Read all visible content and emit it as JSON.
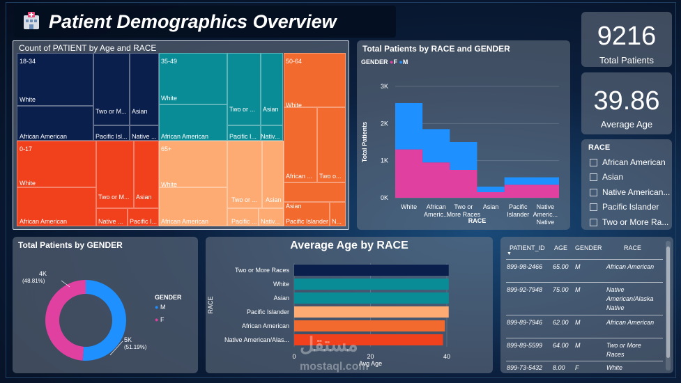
{
  "header": {
    "title": "Patient Demographics Overview"
  },
  "kpis": [
    {
      "value": "9216",
      "label": "Total Patients"
    },
    {
      "value": "39.86",
      "label": "Average Age"
    }
  ],
  "treemap": {
    "title": "Count of PATIENT by Age and RACE",
    "groups": [
      {
        "label": "18-34",
        "color": "#0b1f4d",
        "cells": [
          "White",
          "African American",
          "Two or M...",
          "Pacific Isl...",
          "Asian",
          "Native ..."
        ]
      },
      {
        "label": "35-49",
        "color": "#0a8c96",
        "cells": [
          "White",
          "African American",
          "Two or ...",
          "Pacific I...",
          "Asian",
          "Nativ..."
        ]
      },
      {
        "label": "50-64",
        "color": "#f26a2e",
        "cells": [
          "White",
          "African ...",
          "Two o...",
          "Asian",
          "Pacific Islander",
          "N..."
        ]
      },
      {
        "label": "0-17",
        "color": "#f0401c",
        "cells": [
          "White",
          "African American",
          "Two or M...",
          "Native ...",
          "Asian",
          "Pacific I..."
        ]
      },
      {
        "label": "65+",
        "color": "#fdab73",
        "cells": [
          "White",
          "African American",
          "Two or ...",
          "Pacific ...",
          "Asian",
          "Nativ..."
        ]
      }
    ]
  },
  "race_gender": {
    "title": "Total Patients by RACE and GENDER",
    "legend_title": "GENDER",
    "legend": [
      {
        "name": "F",
        "color": "#e040a0"
      },
      {
        "name": "M",
        "color": "#1e90ff"
      }
    ],
    "ylabel": "Total Patients",
    "xlabel": "RACE",
    "yticks": [
      "3K",
      "2K",
      "1K",
      "0K"
    ],
    "xticks": [
      "White",
      "African Americ...",
      "Two or More Races",
      "Asian",
      "Pacific Islander",
      "Native Americ... Native"
    ]
  },
  "slicer": {
    "title": "RACE",
    "items": [
      "African American",
      "Asian",
      "Native American...",
      "Pacific Islander",
      "Two or More Ra..."
    ]
  },
  "gender_donut": {
    "title": "Total Patients by GENDER",
    "legend_title": "GENDER",
    "label_f": "4K",
    "pct_f": "(48.81%)",
    "label_m": "5K",
    "pct_m": "(51.19%)",
    "legend": [
      {
        "name": "M",
        "color": "#1e90ff"
      },
      {
        "name": "F",
        "color": "#e040a0"
      }
    ]
  },
  "avg_age": {
    "title": "Average Age by RACE",
    "ylabel": "RACE",
    "xlabel": "Avg Age",
    "xticks": [
      "0",
      "20",
      "40"
    ]
  },
  "table": {
    "headers": [
      "PATIENT_ID",
      "AGE",
      "GENDER",
      "RACE"
    ],
    "rows": [
      {
        "id": "899-98-2466",
        "age": "65.00",
        "gender": "M",
        "race": "African American"
      },
      {
        "id": "899-92-7948",
        "age": "75.00",
        "gender": "M",
        "race": "Native American/Alaska Native"
      },
      {
        "id": "899-89-7946",
        "age": "62.00",
        "gender": "M",
        "race": "African American"
      },
      {
        "id": "899-89-5599",
        "age": "64.00",
        "gender": "M",
        "race": "Two or More Races"
      },
      {
        "id": "899-73-5432",
        "age": "8.00",
        "gender": "F",
        "race": "White"
      }
    ]
  },
  "watermark": {
    "text_ar": "مستقل",
    "text": "mostaql.com"
  },
  "chart_data": [
    {
      "type": "area",
      "title": "Total Patients by RACE and GENDER",
      "xlabel": "RACE",
      "ylabel": "Total Patients",
      "categories": [
        "White",
        "African American",
        "Two or More Races",
        "Asian",
        "Pacific Islander",
        "Native American/Alaska Native"
      ],
      "ylim": [
        0,
        3000
      ],
      "series": [
        {
          "name": "F",
          "values": [
            1300,
            950,
            750,
            150,
            350,
            350
          ]
        },
        {
          "name": "M",
          "values": [
            1250,
            900,
            750,
            150,
            200,
            200
          ]
        }
      ],
      "stacked": true
    },
    {
      "type": "bar",
      "title": "Average Age by RACE",
      "xlabel": "Avg Age",
      "ylabel": "RACE",
      "categories": [
        "Two or More Races",
        "White",
        "Asian",
        "Pacific Islander",
        "African American",
        "Native American/Alas..."
      ],
      "values": [
        40.5,
        40.5,
        40.5,
        40.5,
        39.5,
        39
      ],
      "colors": [
        "#0b1f4d",
        "#0a8c96",
        "#0a8c96",
        "#fdab73",
        "#f26a2e",
        "#f0401c"
      ],
      "xlim": [
        0,
        40
      ]
    },
    {
      "type": "pie",
      "title": "Total Patients by GENDER",
      "categories": [
        "M",
        "F"
      ],
      "values": [
        51.19,
        48.81
      ],
      "colors": [
        "#1e90ff",
        "#e040a0"
      ]
    }
  ]
}
